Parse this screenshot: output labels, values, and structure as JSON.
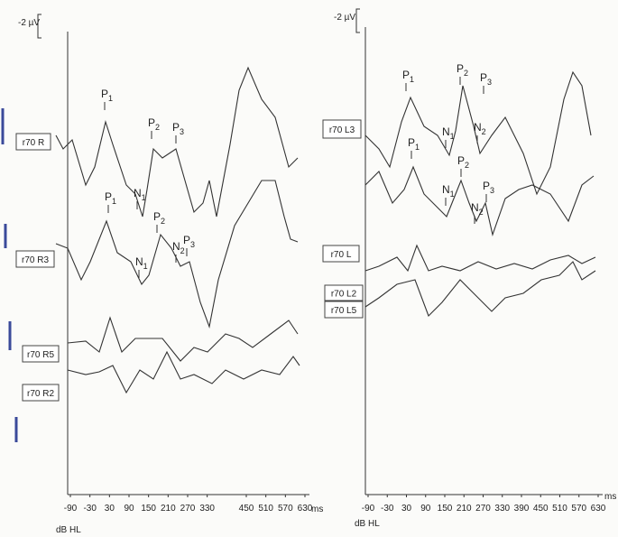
{
  "panels": [
    {
      "scale_label": "-2 µV",
      "traces": [
        "r70 R",
        "r70 R3",
        "r70 R5",
        "r70 R2"
      ],
      "peaks": [
        {
          "letter": "P",
          "sub": "1"
        },
        {
          "letter": "P",
          "sub": "2"
        },
        {
          "letter": "P",
          "sub": "3"
        },
        {
          "letter": "N",
          "sub": "1"
        },
        {
          "letter": "P",
          "sub": "1"
        },
        {
          "letter": "P",
          "sub": "2"
        },
        {
          "letter": "N",
          "sub": "1"
        },
        {
          "letter": "N",
          "sub": "2"
        },
        {
          "letter": "P",
          "sub": "3"
        }
      ],
      "x_ticks": [
        -90,
        -30,
        30,
        90,
        150,
        210,
        270,
        330,
        450,
        510,
        570,
        630
      ],
      "x_unit": "ms",
      "x_axis_label": "dB HL"
    },
    {
      "scale_label": "-2 µV",
      "traces": [
        "r70 L3",
        "r70 L",
        "r70 L2",
        "r70 L5"
      ],
      "peaks": [
        {
          "letter": "P",
          "sub": "1"
        },
        {
          "letter": "P",
          "sub": "2"
        },
        {
          "letter": "P",
          "sub": "3"
        },
        {
          "letter": "N",
          "sub": "1"
        },
        {
          "letter": "N",
          "sub": "2"
        },
        {
          "letter": "P",
          "sub": "1"
        },
        {
          "letter": "P",
          "sub": "2"
        },
        {
          "letter": "P",
          "sub": "3"
        },
        {
          "letter": "N",
          "sub": "1"
        },
        {
          "letter": "N",
          "sub": "2"
        }
      ],
      "x_ticks": [
        -90,
        -30,
        30,
        90,
        150,
        210,
        270,
        330,
        390,
        450,
        510,
        570,
        630
      ],
      "x_unit": "ms",
      "x_axis_label": "dB HL"
    }
  ]
}
